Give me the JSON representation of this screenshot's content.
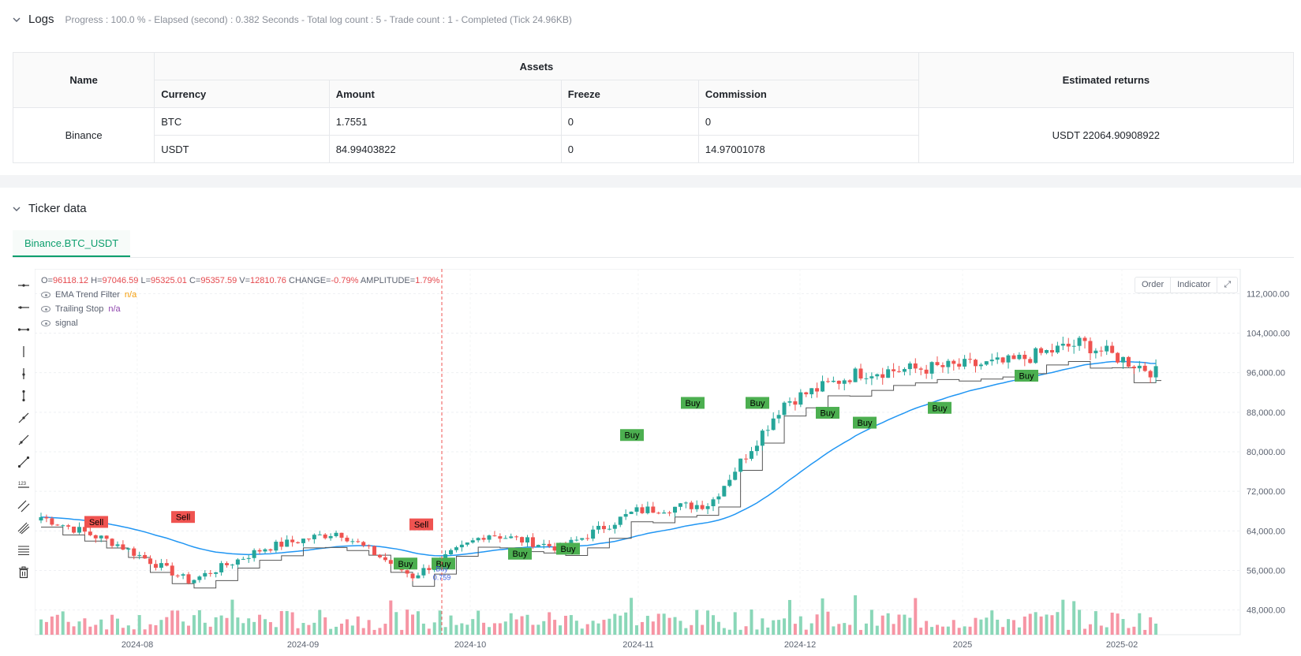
{
  "logs": {
    "title": "Logs",
    "meta": "Progress : 100.0 % - Elapsed (second) : 0.382   Seconds - Total log count : 5 - Trade count : 1 - Completed (Tick 24.96KB)"
  },
  "assets_table": {
    "header_name": "Name",
    "header_assets": "Assets",
    "header_returns": "Estimated returns",
    "sub_headers": [
      "Currency",
      "Amount",
      "Freeze",
      "Commission"
    ],
    "exchange": "Binance",
    "rows": [
      {
        "currency": "BTC",
        "amount": "1.7551",
        "freeze": "0",
        "commission": "0"
      },
      {
        "currency": "USDT",
        "amount": "84.99403822",
        "freeze": "0",
        "commission": "14.97001078"
      }
    ],
    "estimated_returns": "USDT 22064.90908922"
  },
  "ticker": {
    "title": "Ticker data",
    "tab_label": "Binance.BTC_USDT"
  },
  "ohlc": {
    "o_label": "O=",
    "o": "96118.12",
    "h_label": "H=",
    "h": "97046.59",
    "l_label": "L=",
    "l": "95325.01",
    "c_label": "C=",
    "c": "95357.59",
    "v_label": "V=",
    "v": "12810.76",
    "change_label": "CHANGE=",
    "change": "-0.79%",
    "amp_label": "AMPLITUDE=",
    "amp": "1.79%"
  },
  "legend": [
    {
      "name": "EMA Trend Filter",
      "value": "n/a"
    },
    {
      "name": "Trailing Stop",
      "value": "n/a"
    },
    {
      "name": "signal",
      "value": ""
    }
  ],
  "chart_buttons": {
    "order": "Order",
    "indicator": "Indicator"
  },
  "colors": {
    "up": "#26a69a",
    "down": "#ef5350",
    "ema": "#2196f3",
    "trail": "#555555",
    "buy": "#4caf50",
    "sell": "#ef5350",
    "accent": "#0e9f6e"
  },
  "chart_data": {
    "type": "candlestick",
    "y_ticks": [
      "112,000.00",
      "104,000.00",
      "96,000.00",
      "88,000.00",
      "80,000.00",
      "72,000.00",
      "64,000.00",
      "56,000.00",
      "48,000.00"
    ],
    "x_ticks": [
      "2024-08",
      "2024-09",
      "2024-10",
      "2024-11",
      "2024-12",
      "2025",
      "2025-02"
    ],
    "ylim": [
      43000,
      117000
    ],
    "candles_weekly_approx": [
      {
        "t": "2024-07-15",
        "o": 66000,
        "c": 66800
      },
      {
        "t": "2024-07-22",
        "o": 66800,
        "c": 61500
      },
      {
        "t": "2024-08-05",
        "o": 58000,
        "c": 53800
      },
      {
        "t": "2024-08-12",
        "o": 59000,
        "c": 60500
      },
      {
        "t": "2024-08-19",
        "o": 60000,
        "c": 63800
      },
      {
        "t": "2024-09-02",
        "o": 56000,
        "c": 54800
      },
      {
        "t": "2024-09-16",
        "o": 58000,
        "c": 63500
      },
      {
        "t": "2024-09-30",
        "o": 63500,
        "c": 60500
      },
      {
        "t": "2024-10-14",
        "o": 62500,
        "c": 68000
      },
      {
        "t": "2024-10-28",
        "o": 70000,
        "c": 69500
      },
      {
        "t": "2024-11-11",
        "o": 80000,
        "c": 90000
      },
      {
        "t": "2024-11-25",
        "o": 98000,
        "c": 96000
      },
      {
        "t": "2024-12-16",
        "o": 106000,
        "c": 97000
      },
      {
        "t": "2024-12-30",
        "o": 93000,
        "c": 98000
      },
      {
        "t": "2025-01-20",
        "o": 104000,
        "c": 102000
      },
      {
        "t": "2025-02-03",
        "o": 97500,
        "c": 96000
      }
    ],
    "signals": [
      {
        "label": "Sell",
        "approx_price": 63500
      },
      {
        "label": "Sell",
        "approx_price": 64500
      },
      {
        "label": "Sell",
        "approx_price": 63000
      },
      {
        "label": "Buy",
        "approx_price": 60500
      },
      {
        "label": "Buy",
        "approx_price": 60500
      },
      {
        "label": "Buy",
        "approx_price": 62500
      },
      {
        "label": "Buy",
        "approx_price": 63500
      },
      {
        "label": "Buy",
        "approx_price": 86500
      },
      {
        "label": "Buy",
        "approx_price": 93000
      },
      {
        "label": "Buy",
        "approx_price": 93000
      },
      {
        "label": "Buy",
        "approx_price": 91000
      },
      {
        "label": "Buy",
        "approx_price": 89000
      },
      {
        "label": "Buy",
        "approx_price": 92000
      },
      {
        "label": "Buy",
        "approx_price": 98500
      }
    ],
    "trade_marker": {
      "label": "Buy",
      "value": "0.759"
    },
    "series": [
      {
        "name": "EMA Trend Filter"
      },
      {
        "name": "Trailing Stop"
      }
    ]
  }
}
